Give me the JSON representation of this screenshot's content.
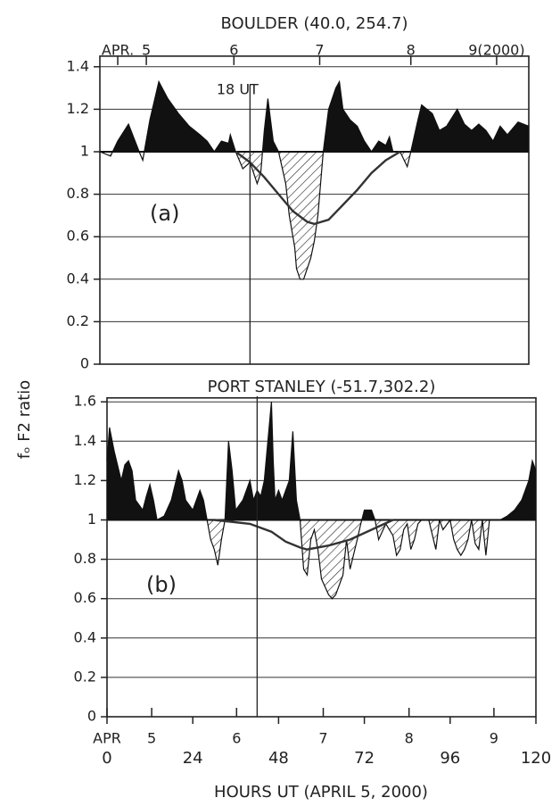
{
  "chart_data": [
    {
      "type": "area",
      "title": "BOULDER (40.0, 254.7)",
      "panel_label": "(a)",
      "ylabel": "fₒ F2 ratio",
      "xlim": [
        0,
        120
      ],
      "ylim": [
        0,
        1.45
      ],
      "yticks": [
        0,
        0.2,
        0.4,
        0.6,
        0.8,
        1,
        1.2,
        1.4
      ],
      "grid": true,
      "fill_baseline": 1,
      "day_ticks": [
        {
          "value": 5,
          "label": "APR."
        },
        {
          "value": 13,
          "label": "5"
        },
        {
          "value": 37.5,
          "label": "6"
        },
        {
          "value": 61.5,
          "label": "7"
        },
        {
          "value": 87,
          "label": "8"
        },
        {
          "value": 111,
          "label": "9(2000)"
        }
      ],
      "annotations": [
        {
          "text": "18 UT",
          "x": 42
        }
      ],
      "series": [
        {
          "color": "#111",
          "fill": true,
          "x": [
            0,
            3,
            5,
            8,
            11,
            12,
            14,
            16.5,
            19,
            22,
            25,
            28,
            30,
            32,
            34,
            36,
            36.5,
            38,
            40,
            42,
            44,
            45,
            46,
            47,
            48.5,
            50,
            52,
            53,
            54,
            54.5,
            55,
            56,
            57,
            58,
            59,
            60,
            61,
            62,
            62.5,
            64,
            66,
            67,
            68,
            70,
            72,
            74,
            76,
            78,
            80,
            81,
            82,
            84,
            86,
            87,
            89,
            90,
            93,
            95,
            97,
            100,
            102,
            104,
            106,
            108,
            110,
            112,
            114,
            117,
            120
          ],
          "values": [
            1.0,
            0.98,
            1.05,
            1.13,
            1.0,
            0.96,
            1.15,
            1.33,
            1.25,
            1.18,
            1.12,
            1.08,
            1.05,
            1.0,
            1.05,
            1.04,
            1.08,
            1.0,
            0.92,
            0.95,
            0.85,
            0.9,
            1.1,
            1.25,
            1.05,
            1.0,
            0.85,
            0.7,
            0.6,
            0.55,
            0.45,
            0.4,
            0.4,
            0.45,
            0.5,
            0.58,
            0.7,
            0.9,
            1.0,
            1.2,
            1.3,
            1.33,
            1.2,
            1.15,
            1.12,
            1.05,
            1.0,
            1.05,
            1.03,
            1.07,
            1.0,
            1.0,
            0.93,
            1.0,
            1.15,
            1.22,
            1.18,
            1.1,
            1.12,
            1.2,
            1.13,
            1.1,
            1.13,
            1.1,
            1.05,
            1.12,
            1.08,
            1.14,
            1.12
          ]
        },
        {
          "color": "#333",
          "fill": false,
          "x": [
            38,
            42,
            46,
            50,
            54,
            58,
            60,
            64,
            68,
            72,
            76,
            80,
            84
          ],
          "values": [
            1.0,
            0.95,
            0.88,
            0.8,
            0.72,
            0.67,
            0.66,
            0.68,
            0.75,
            0.82,
            0.9,
            0.96,
            1.0
          ]
        }
      ]
    },
    {
      "type": "area",
      "title": "PORT STANLEY (-51.7,302.2)",
      "panel_label": "(b)",
      "xlabel": "HOURS UT (APRIL 5, 2000)",
      "xlim": [
        0,
        120
      ],
      "ylim": [
        0,
        1.62
      ],
      "yticks": [
        0,
        0.2,
        0.4,
        0.6,
        0.8,
        1,
        1.2,
        1.4,
        1.6
      ],
      "grid": true,
      "fill_baseline": 1,
      "xticks": [
        0,
        24,
        48,
        72,
        96,
        120
      ],
      "day_ticks": [
        {
          "value": 0,
          "label": "APR"
        },
        {
          "value": 12.5,
          "label": "5"
        },
        {
          "value": 36.25,
          "label": "6"
        },
        {
          "value": 60.5,
          "label": "7"
        },
        {
          "value": 84.5,
          "label": "8"
        },
        {
          "value": 108.25,
          "label": "9"
        }
      ],
      "annotations": [
        {
          "x": 42
        }
      ],
      "series": [
        {
          "color": "#111",
          "fill": true,
          "x": [
            0,
            0.7,
            2,
            4,
            5,
            6,
            7,
            8,
            10,
            11,
            12,
            13,
            14,
            16,
            18,
            20,
            21,
            22,
            24,
            26,
            27,
            28,
            29,
            30,
            31,
            32,
            33,
            34,
            35,
            36,
            38,
            40,
            41,
            42,
            43,
            44,
            45,
            46,
            46.5,
            47,
            48,
            49,
            50,
            51,
            52,
            53,
            54,
            55,
            56,
            57,
            58,
            59,
            60,
            62,
            63,
            64,
            66,
            67,
            68,
            70,
            71,
            72,
            74,
            75,
            76,
            78,
            80,
            81,
            82,
            83,
            84,
            85,
            86,
            87,
            88,
            90,
            92,
            93,
            94,
            96,
            97,
            98,
            99,
            100,
            101,
            102,
            103,
            104,
            105,
            106,
            107,
            110,
            112,
            114,
            116,
            118,
            119,
            120
          ],
          "values": [
            1.3,
            1.47,
            1.35,
            1.2,
            1.28,
            1.3,
            1.25,
            1.1,
            1.05,
            1.12,
            1.18,
            1.1,
            1.0,
            1.02,
            1.1,
            1.25,
            1.2,
            1.1,
            1.05,
            1.15,
            1.1,
            1.0,
            0.9,
            0.85,
            0.77,
            0.9,
            1.0,
            1.4,
            1.25,
            1.05,
            1.1,
            1.2,
            1.1,
            1.15,
            1.12,
            1.2,
            1.4,
            1.6,
            1.3,
            1.1,
            1.15,
            1.1,
            1.15,
            1.2,
            1.45,
            1.1,
            1.0,
            0.75,
            0.72,
            0.9,
            0.95,
            0.85,
            0.7,
            0.62,
            0.6,
            0.62,
            0.72,
            0.9,
            0.75,
            0.9,
            0.98,
            1.05,
            1.05,
            1.0,
            0.9,
            0.98,
            0.92,
            0.82,
            0.85,
            0.95,
            0.98,
            0.85,
            0.9,
            0.98,
            1.0,
            1.0,
            0.85,
            1.0,
            0.95,
            1.0,
            0.9,
            0.85,
            0.82,
            0.85,
            0.9,
            1.0,
            0.88,
            0.85,
            1.0,
            0.82,
            1.0,
            1.0,
            1.02,
            1.05,
            1.1,
            1.2,
            1.3,
            1.25
          ]
        },
        {
          "color": "#333",
          "fill": false,
          "x": [
            30,
            40,
            46,
            50,
            54,
            56,
            62,
            68,
            74,
            80
          ],
          "values": [
            1.0,
            0.98,
            0.94,
            0.89,
            0.86,
            0.85,
            0.87,
            0.9,
            0.95,
            1.0
          ]
        }
      ]
    }
  ]
}
